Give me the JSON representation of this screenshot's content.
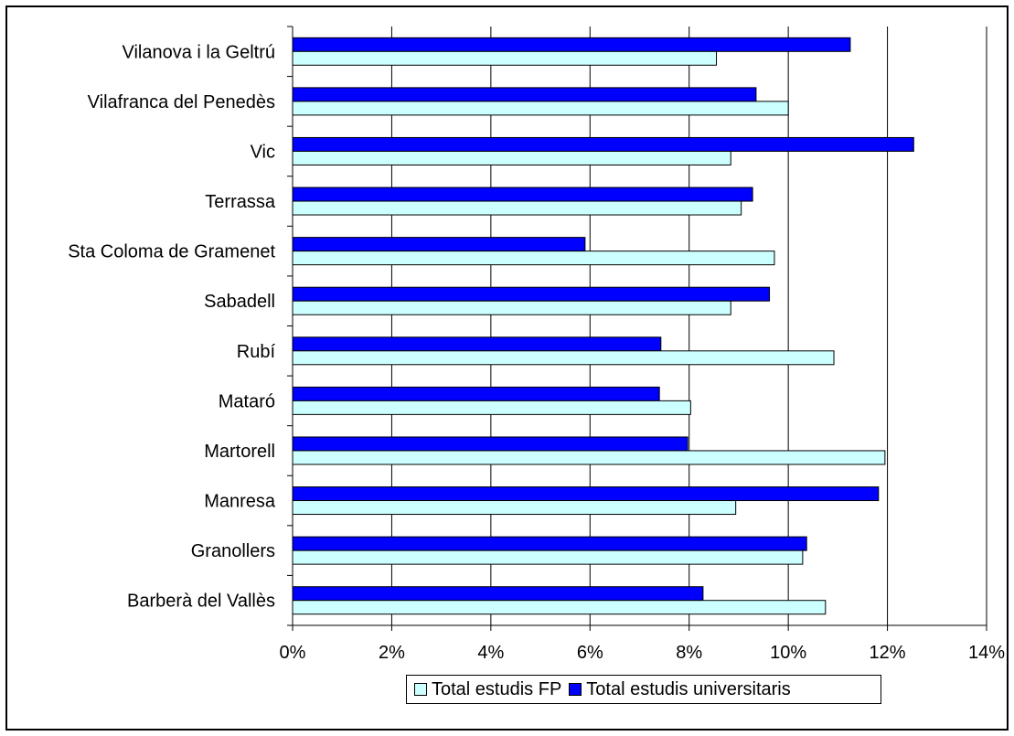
{
  "colors": {
    "fp": "#ccffff",
    "universitaris": "#0000ff",
    "outline": "#000000",
    "gridline": "#000000",
    "background": "#ffffff"
  },
  "legend": {
    "fp_label": "Total estudis FP",
    "uni_label": "Total estudis universitaris"
  },
  "chart_data": {
    "type": "bar",
    "orientation": "horizontal",
    "title": "",
    "xlabel": "",
    "ylabel": "",
    "xlim": [
      0,
      0.14
    ],
    "x_ticks": [
      0,
      0.02,
      0.04,
      0.06,
      0.08,
      0.1,
      0.12,
      0.14
    ],
    "x_tick_labels": [
      "0%",
      "2%",
      "4%",
      "6%",
      "8%",
      "10%",
      "12%",
      "14%"
    ],
    "grid": "vertical major gridlines",
    "legend_position": "bottom",
    "categories": [
      "Vilanova i la Geltrú",
      "Vilafranca del Penedès",
      "Vic",
      "Terrassa",
      "Sta Coloma de Gramenet",
      "Sabadell",
      "Rubí",
      "Mataró",
      "Martorell",
      "Manresa",
      "Granollers",
      "Barberà del Vallès"
    ],
    "series": [
      {
        "name": "Total estudis universitaris",
        "color": "#0000ff",
        "values": [
          0.1125,
          0.0935,
          0.1253,
          0.0928,
          0.059,
          0.0962,
          0.0743,
          0.074,
          0.0797,
          0.1182,
          0.1037,
          0.0828
        ]
      },
      {
        "name": "Total estudis FP",
        "color": "#ccffff",
        "values": [
          0.0855,
          0.1,
          0.0884,
          0.0905,
          0.0972,
          0.0884,
          0.1092,
          0.0803,
          0.1195,
          0.0894,
          0.1029,
          0.1075
        ]
      }
    ]
  }
}
